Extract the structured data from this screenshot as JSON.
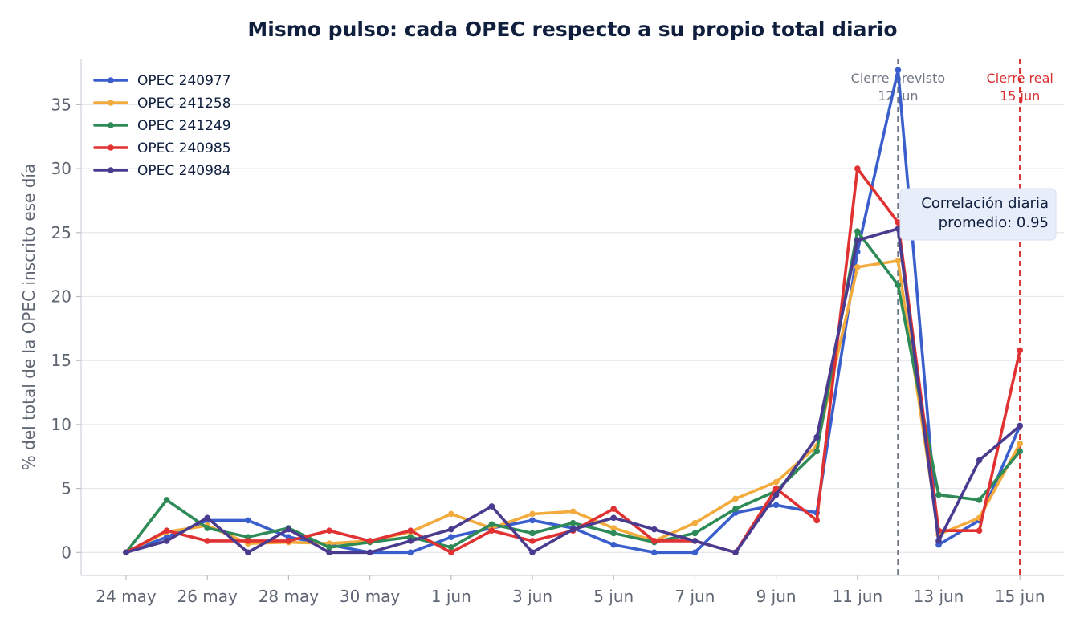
{
  "chart_data": {
    "type": "line",
    "title": "Mismo pulso: cada OPEC respecto a su propio total diario",
    "xlabel": "",
    "ylabel": "% del total de la OPEC inscrito ese día",
    "ylim": [
      -1.8,
      38.6
    ],
    "yticks": [
      0,
      5,
      10,
      15,
      20,
      25,
      30,
      35
    ],
    "x": [
      "24 may",
      "25 may",
      "26 may",
      "27 may",
      "28 may",
      "29 may",
      "30 may",
      "31 may",
      "1 jun",
      "2 jun",
      "3 jun",
      "4 jun",
      "5 jun",
      "6 jun",
      "7 jun",
      "8 jun",
      "9 jun",
      "10 jun",
      "11 jun",
      "12 jun",
      "13 jun",
      "14 jun",
      "15 jun"
    ],
    "xtick_labels": [
      "24 may",
      "26 may",
      "28 may",
      "30 may",
      "1 jun",
      "3 jun",
      "5 jun",
      "7 jun",
      "9 jun",
      "11 jun",
      "13 jun",
      "15 jun"
    ],
    "grid": "horizontal",
    "legend_position": "top-left",
    "series": [
      {
        "name": "OPEC 240977",
        "color": "#3a5fcd",
        "values": [
          0,
          1.2,
          2.5,
          2.5,
          1.2,
          0.6,
          0,
          0,
          1.2,
          1.9,
          2.5,
          1.9,
          0.6,
          0,
          0,
          3.1,
          3.7,
          3.1,
          23.5,
          37.7,
          0.6,
          2.5,
          9.9
        ]
      },
      {
        "name": "OPEC 241258",
        "color": "#f2ab3c",
        "values": [
          0,
          1.6,
          2.1,
          0.7,
          0.8,
          0.7,
          0.9,
          1.6,
          3.0,
          1.9,
          3.0,
          3.2,
          1.9,
          0.9,
          2.3,
          4.2,
          5.5,
          8.3,
          22.3,
          22.8,
          1.4,
          2.7,
          8.5
        ]
      },
      {
        "name": "OPEC 241249",
        "color": "#2e8b57",
        "values": [
          0,
          4.1,
          1.9,
          1.2,
          1.9,
          0.4,
          0.8,
          1.2,
          0.4,
          2.2,
          1.5,
          2.3,
          1.5,
          0.8,
          1.5,
          3.4,
          4.8,
          7.9,
          25.1,
          20.9,
          4.5,
          4.1,
          7.9
        ]
      },
      {
        "name": "OPEC 240985",
        "color": "#e03232",
        "values": [
          0,
          1.7,
          0.9,
          0.9,
          0.9,
          1.7,
          0.9,
          1.7,
          0,
          1.7,
          0.9,
          1.7,
          3.4,
          0.9,
          0.9,
          0,
          5.0,
          2.5,
          30.0,
          25.8,
          1.7,
          1.7,
          15.8
        ]
      },
      {
        "name": "OPEC 240984",
        "color": "#4a3b8f",
        "values": [
          0,
          0.9,
          2.7,
          0,
          1.8,
          0,
          0,
          0.9,
          1.8,
          3.6,
          0,
          1.8,
          2.7,
          1.8,
          0.9,
          0,
          4.5,
          9.0,
          24.4,
          25.3,
          0.9,
          7.2,
          9.9
        ]
      }
    ],
    "vlines": [
      {
        "x": "12 jun",
        "label_line1": "Cierre previsto",
        "label_line2": "12 jun",
        "color": "#707784"
      },
      {
        "x": "15 jun",
        "label_line1": "Cierre real",
        "label_line2": "15 jun",
        "color": "#d93030"
      }
    ],
    "annotation": {
      "line1": "Correlación diaria",
      "line2": "promedio: 0.95"
    }
  }
}
